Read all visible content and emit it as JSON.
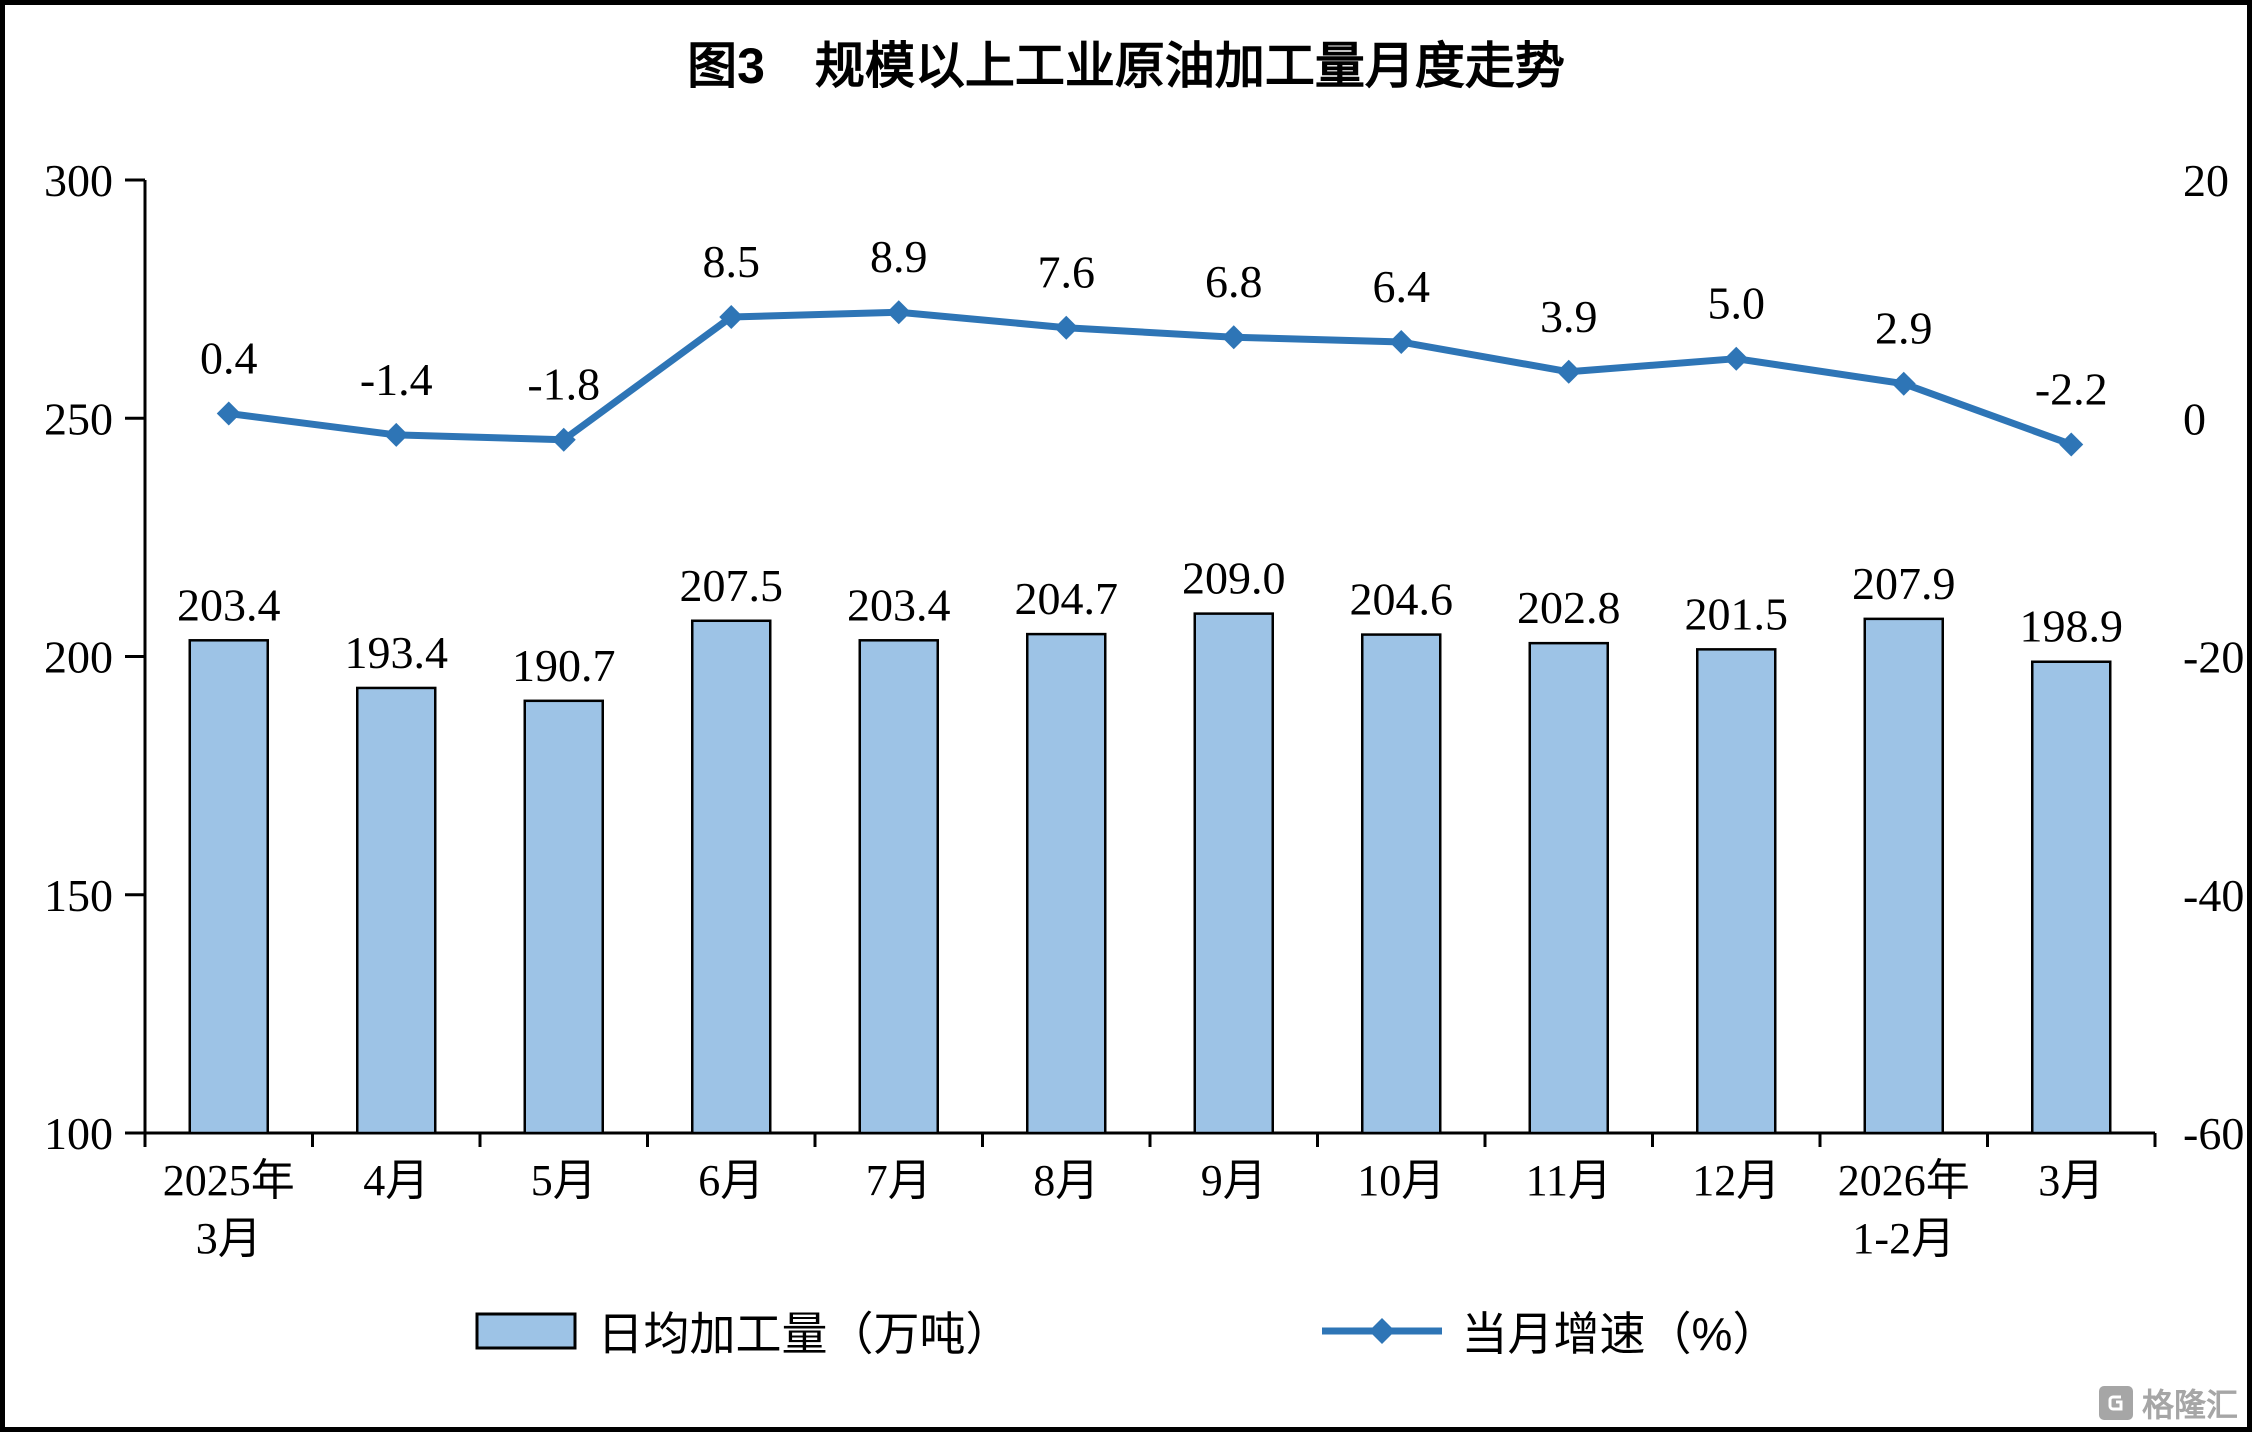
{
  "title": "图3　规模以上工业原油加工量月度走势",
  "watermark": {
    "text": "格隆汇",
    "logo_icon": "gelonghui-logo"
  },
  "chart_data": {
    "type": "combo",
    "categories": [
      "2025年\n3月",
      "4月",
      "5月",
      "6月",
      "7月",
      "8月",
      "9月",
      "10月",
      "11月",
      "12月",
      "2026年\n1-2月",
      "3月"
    ],
    "series": [
      {
        "name": "日均加工量（万吨）",
        "type": "bar",
        "axis": "left",
        "color": "#9DC3E6",
        "border_color": "#000000",
        "values": [
          203.4,
          193.4,
          190.7,
          207.5,
          203.4,
          204.7,
          209.0,
          204.6,
          202.8,
          201.5,
          207.9,
          198.9
        ]
      },
      {
        "name": "当月增速（%）",
        "type": "line",
        "axis": "right",
        "color": "#2E75B6",
        "marker": "diamond",
        "values": [
          0.4,
          -1.4,
          -1.8,
          8.5,
          8.9,
          7.6,
          6.8,
          6.4,
          3.9,
          5.0,
          2.9,
          -2.2
        ]
      }
    ],
    "left_axis": {
      "min": 100,
      "max": 300,
      "ticks": [
        100,
        150,
        200,
        250,
        300
      ]
    },
    "right_axis": {
      "min": -60,
      "max": 20,
      "ticks": [
        -60,
        -40,
        -20,
        0,
        20
      ]
    },
    "value_labels": "one_decimal",
    "grid": false,
    "legend_position": "bottom"
  }
}
